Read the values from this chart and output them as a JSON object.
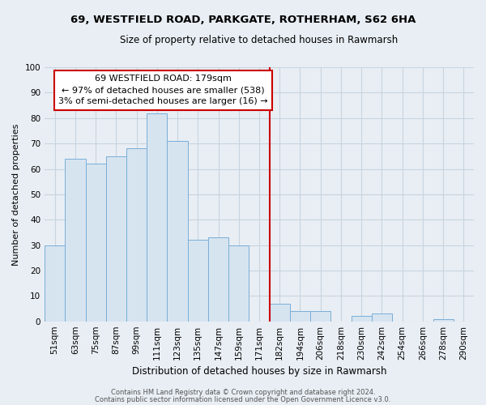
{
  "title": "69, WESTFIELD ROAD, PARKGATE, ROTHERHAM, S62 6HA",
  "subtitle": "Size of property relative to detached houses in Rawmarsh",
  "xlabel": "Distribution of detached houses by size in Rawmarsh",
  "ylabel": "Number of detached properties",
  "bar_labels": [
    "51sqm",
    "63sqm",
    "75sqm",
    "87sqm",
    "99sqm",
    "111sqm",
    "123sqm",
    "135sqm",
    "147sqm",
    "159sqm",
    "171sqm",
    "182sqm",
    "194sqm",
    "206sqm",
    "218sqm",
    "230sqm",
    "242sqm",
    "254sqm",
    "266sqm",
    "278sqm",
    "290sqm"
  ],
  "bar_values": [
    30,
    64,
    62,
    65,
    68,
    82,
    71,
    32,
    33,
    30,
    0,
    7,
    4,
    4,
    0,
    2,
    3,
    0,
    0,
    1,
    0
  ],
  "bar_color": "#d6e4f0",
  "bar_edge_color": "#7aaed6",
  "vline_color": "#cc0000",
  "annotation_title": "69 WESTFIELD ROAD: 179sqm",
  "annotation_line1": "← 97% of detached houses are smaller (538)",
  "annotation_line2": "3% of semi-detached houses are larger (16) →",
  "annotation_box_color": "white",
  "annotation_box_edge": "#cc0000",
  "ylim": [
    0,
    100
  ],
  "yticks": [
    0,
    10,
    20,
    30,
    40,
    50,
    60,
    70,
    80,
    90,
    100
  ],
  "footer1": "Contains HM Land Registry data © Crown copyright and database right 2024.",
  "footer2": "Contains public sector information licensed under the Open Government Licence v3.0.",
  "bg_color": "#e8eef4",
  "grid_color": "#c8d4e0",
  "title_fontsize": 9.5,
  "subtitle_fontsize": 8.5,
  "ylabel_fontsize": 8,
  "xlabel_fontsize": 8.5,
  "tick_fontsize": 7.5,
  "annot_fontsize": 8,
  "footer_fontsize": 6
}
